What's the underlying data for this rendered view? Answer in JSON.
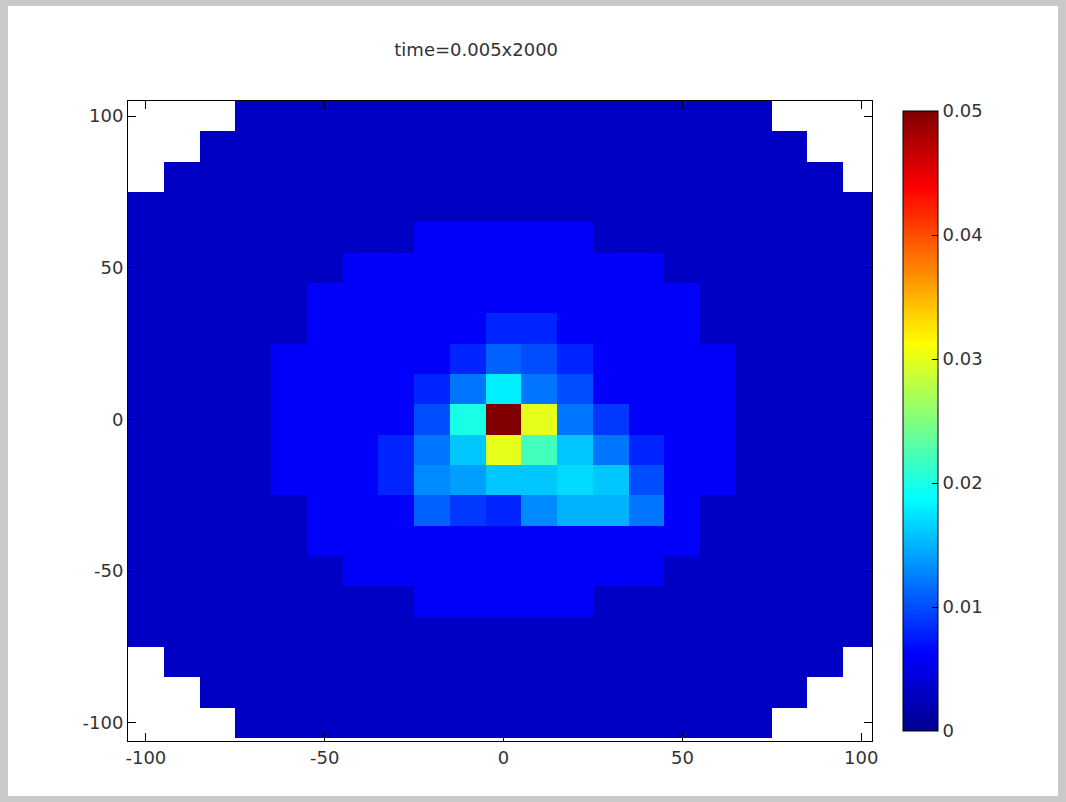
{
  "chart_data": {
    "type": "heatmap",
    "title": "time=0.005x2000",
    "x": [
      -100,
      -90,
      -80,
      -70,
      -60,
      -50,
      -40,
      -30,
      -20,
      -10,
      0,
      10,
      20,
      30,
      40,
      50,
      60,
      70,
      80,
      90,
      100
    ],
    "y": [
      -100,
      -90,
      -80,
      -70,
      -60,
      -50,
      -40,
      -30,
      -20,
      -10,
      0,
      10,
      20,
      30,
      40,
      50,
      60,
      70,
      80,
      90,
      100
    ],
    "z": [
      [
        null,
        null,
        null,
        0.003,
        0.003,
        0.003,
        0.003,
        0.003,
        0.003,
        0.003,
        0.003,
        0.003,
        0.003,
        0.003,
        0.003,
        0.003,
        0.003,
        0.003,
        null,
        null,
        null
      ],
      [
        null,
        null,
        0.003,
        0.003,
        0.003,
        0.003,
        0.003,
        0.003,
        0.003,
        0.003,
        0.003,
        0.003,
        0.003,
        0.003,
        0.003,
        0.003,
        0.003,
        0.003,
        0.003,
        null,
        null
      ],
      [
        null,
        0.003,
        0.003,
        0.003,
        0.003,
        0.003,
        0.003,
        0.003,
        0.003,
        0.003,
        0.003,
        0.003,
        0.003,
        0.003,
        0.003,
        0.003,
        0.003,
        0.003,
        0.003,
        0.003,
        null
      ],
      [
        0.003,
        0.003,
        0.003,
        0.003,
        0.003,
        0.003,
        0.003,
        0.003,
        0.003,
        0.003,
        0.003,
        0.003,
        0.003,
        0.003,
        0.003,
        0.003,
        0.003,
        0.003,
        0.003,
        0.003,
        0.003
      ],
      [
        0.003,
        0.003,
        0.003,
        0.003,
        0.003,
        0.003,
        0.003,
        0.003,
        0.006,
        0.006,
        0.006,
        0.006,
        0.006,
        0.003,
        0.003,
        0.003,
        0.003,
        0.003,
        0.003,
        0.003,
        0.003
      ],
      [
        0.003,
        0.003,
        0.003,
        0.003,
        0.003,
        0.003,
        0.006,
        0.006,
        0.006,
        0.006,
        0.006,
        0.006,
        0.006,
        0.006,
        0.006,
        0.003,
        0.003,
        0.003,
        0.003,
        0.003,
        0.003
      ],
      [
        0.003,
        0.003,
        0.003,
        0.003,
        0.003,
        0.006,
        0.006,
        0.006,
        0.006,
        0.006,
        0.006,
        0.006,
        0.006,
        0.006,
        0.006,
        0.006,
        0.003,
        0.003,
        0.003,
        0.003,
        0.003
      ],
      [
        0.003,
        0.003,
        0.003,
        0.003,
        0.003,
        0.006,
        0.006,
        0.006,
        0.011,
        0.009,
        0.008,
        0.013,
        0.015,
        0.015,
        0.012,
        0.006,
        0.003,
        0.003,
        0.003,
        0.003,
        0.003
      ],
      [
        0.003,
        0.003,
        0.003,
        0.003,
        0.006,
        0.006,
        0.006,
        0.008,
        0.013,
        0.014,
        0.016,
        0.016,
        0.017,
        0.016,
        0.01,
        0.006,
        0.006,
        0.003,
        0.003,
        0.003,
        0.003
      ],
      [
        0.003,
        0.003,
        0.003,
        0.003,
        0.006,
        0.006,
        0.006,
        0.008,
        0.012,
        0.016,
        0.03,
        0.022,
        0.016,
        0.012,
        0.008,
        0.006,
        0.006,
        0.003,
        0.003,
        0.003,
        0.003
      ],
      [
        0.003,
        0.003,
        0.003,
        0.003,
        0.006,
        0.006,
        0.006,
        0.006,
        0.01,
        0.02,
        0.05,
        0.03,
        0.012,
        0.009,
        0.006,
        0.006,
        0.006,
        0.003,
        0.003,
        0.003,
        0.003
      ],
      [
        0.003,
        0.003,
        0.003,
        0.003,
        0.006,
        0.006,
        0.006,
        0.006,
        0.008,
        0.012,
        0.018,
        0.012,
        0.01,
        0.006,
        0.006,
        0.006,
        0.006,
        0.003,
        0.003,
        0.003,
        0.003
      ],
      [
        0.003,
        0.003,
        0.003,
        0.003,
        0.006,
        0.006,
        0.006,
        0.006,
        0.006,
        0.008,
        0.011,
        0.01,
        0.008,
        0.006,
        0.006,
        0.006,
        0.006,
        0.003,
        0.003,
        0.003,
        0.003
      ],
      [
        0.003,
        0.003,
        0.003,
        0.003,
        0.003,
        0.006,
        0.006,
        0.006,
        0.006,
        0.006,
        0.008,
        0.008,
        0.006,
        0.006,
        0.006,
        0.006,
        0.003,
        0.003,
        0.003,
        0.003,
        0.003
      ],
      [
        0.003,
        0.003,
        0.003,
        0.003,
        0.003,
        0.006,
        0.006,
        0.006,
        0.006,
        0.006,
        0.006,
        0.006,
        0.006,
        0.006,
        0.006,
        0.006,
        0.003,
        0.003,
        0.003,
        0.003,
        0.003
      ],
      [
        0.003,
        0.003,
        0.003,
        0.003,
        0.003,
        0.003,
        0.006,
        0.006,
        0.006,
        0.006,
        0.006,
        0.006,
        0.006,
        0.006,
        0.006,
        0.003,
        0.003,
        0.003,
        0.003,
        0.003,
        0.003
      ],
      [
        0.003,
        0.003,
        0.003,
        0.003,
        0.003,
        0.003,
        0.003,
        0.003,
        0.006,
        0.006,
        0.006,
        0.006,
        0.006,
        0.003,
        0.003,
        0.003,
        0.003,
        0.003,
        0.003,
        0.003,
        0.003
      ],
      [
        0.003,
        0.003,
        0.003,
        0.003,
        0.003,
        0.003,
        0.003,
        0.003,
        0.003,
        0.003,
        0.003,
        0.003,
        0.003,
        0.003,
        0.003,
        0.003,
        0.003,
        0.003,
        0.003,
        0.003,
        0.003
      ],
      [
        null,
        0.003,
        0.003,
        0.003,
        0.003,
        0.003,
        0.003,
        0.003,
        0.003,
        0.003,
        0.003,
        0.003,
        0.003,
        0.003,
        0.003,
        0.003,
        0.003,
        0.003,
        0.003,
        0.003,
        null
      ],
      [
        null,
        null,
        0.003,
        0.003,
        0.003,
        0.003,
        0.003,
        0.003,
        0.003,
        0.003,
        0.003,
        0.003,
        0.003,
        0.003,
        0.003,
        0.003,
        0.003,
        0.003,
        0.003,
        null,
        null
      ],
      [
        null,
        null,
        null,
        0.003,
        0.003,
        0.003,
        0.003,
        0.003,
        0.003,
        0.003,
        0.003,
        0.003,
        0.003,
        0.003,
        0.003,
        0.003,
        0.003,
        0.003,
        null,
        null,
        null
      ]
    ],
    "xlim": [
      -105,
      103
    ],
    "ylim": [
      -106,
      105
    ],
    "xticks": [
      -100,
      -50,
      0,
      50,
      100
    ],
    "yticks": [
      -100,
      -50,
      0,
      50,
      100
    ],
    "zlim": [
      0,
      0.05
    ],
    "zticks": [
      0,
      0.01,
      0.02,
      0.03,
      0.04,
      0.05
    ],
    "grid": false
  }
}
